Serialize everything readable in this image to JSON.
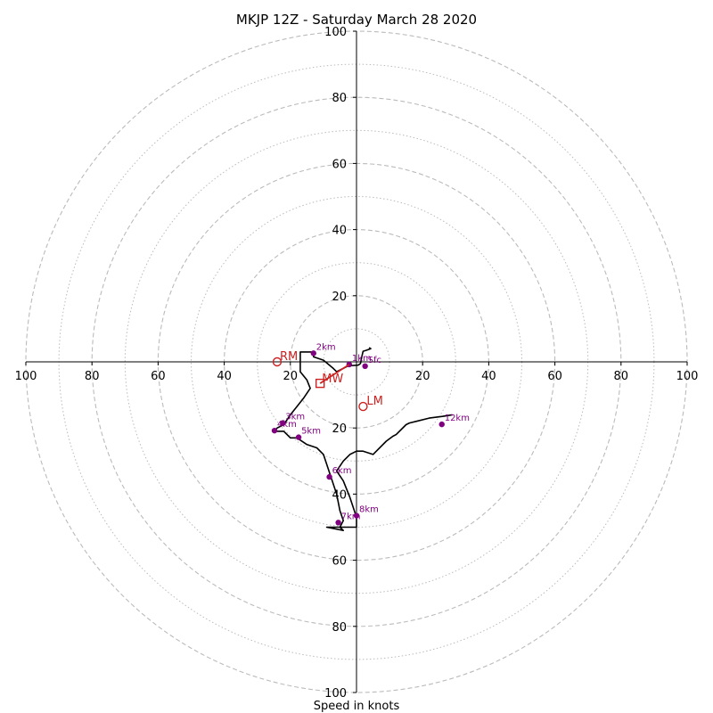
{
  "chart_data": {
    "type": "hodograph",
    "title": "MKJP 12Z - Saturday March 28 2020",
    "xlabel": "Speed in knots",
    "xlim": [
      -100,
      100
    ],
    "ylim": [
      -100,
      100
    ],
    "x_tick_labels": [
      "100",
      "80",
      "60",
      "40",
      "20",
      "20",
      "40",
      "60",
      "80",
      "100"
    ],
    "x_tick_values": [
      -100,
      -80,
      -60,
      -40,
      -20,
      20,
      40,
      60,
      80,
      100
    ],
    "y_tick_labels": [
      "100",
      "80",
      "60",
      "40",
      "20",
      "20",
      "40",
      "60",
      "80",
      "100"
    ],
    "y_tick_values": [
      100,
      80,
      60,
      40,
      20,
      -20,
      -40,
      -60,
      -80,
      -100
    ],
    "range_rings_dashed": [
      20,
      40,
      60,
      80,
      100
    ],
    "range_rings_dotted": [
      10,
      30,
      50,
      70,
      90
    ],
    "trace": [
      [
        3.8,
        4.3
      ],
      [
        4.3,
        4.0
      ],
      [
        3.0,
        3.5
      ],
      [
        2.0,
        3.2
      ],
      [
        1.6,
        1.5
      ],
      [
        1.2,
        -0.5
      ],
      [
        0.5,
        -1.0
      ],
      [
        -2.5,
        -1.2
      ],
      [
        -6,
        -3
      ],
      [
        -7,
        -2
      ],
      [
        -10,
        0.5
      ],
      [
        -13,
        1.5
      ],
      [
        -13,
        3.0
      ],
      [
        -17,
        3.0
      ],
      [
        -17,
        1.0
      ],
      [
        -17,
        -3.0
      ],
      [
        -15,
        -5.5
      ],
      [
        -14,
        -8.0
      ],
      [
        -16,
        -11
      ],
      [
        -18,
        -13.5
      ],
      [
        -20,
        -16
      ],
      [
        -22,
        -19
      ],
      [
        -24,
        -20
      ],
      [
        -25,
        -21
      ],
      [
        -22,
        -21
      ],
      [
        -20,
        -23
      ],
      [
        -18,
        -23
      ],
      [
        -15,
        -25
      ],
      [
        -12,
        -26
      ],
      [
        -10,
        -28
      ],
      [
        -8,
        -34
      ],
      [
        -6,
        -40
      ],
      [
        -5,
        -45
      ],
      [
        -4,
        -48
      ],
      [
        -5,
        -50
      ],
      [
        -4,
        -51
      ],
      [
        -9,
        -50
      ],
      [
        -7,
        -50
      ],
      [
        0,
        -50
      ],
      [
        0,
        -47
      ],
      [
        -2,
        -41
      ],
      [
        -4,
        -36
      ],
      [
        -6,
        -33
      ],
      [
        -4,
        -30
      ],
      [
        -2,
        -28
      ],
      [
        0,
        -27
      ],
      [
        2,
        -27
      ],
      [
        5,
        -28
      ],
      [
        9,
        -24
      ],
      [
        11,
        -22.5
      ],
      [
        12,
        -22
      ],
      [
        15,
        -19
      ],
      [
        16,
        -18.5
      ],
      [
        18,
        -18
      ],
      [
        22,
        -17
      ],
      [
        26,
        -16.5
      ],
      [
        29,
        -16
      ]
    ],
    "height_points": [
      {
        "label": "Sfc",
        "x": 2.6,
        "y": -1.3
      },
      {
        "label": "1km",
        "x": -2.2,
        "y": -0.8
      },
      {
        "label": "2km",
        "x": -13,
        "y": 2.6
      },
      {
        "label": "3km",
        "x": -22.3,
        "y": -18.5
      },
      {
        "label": "4km",
        "x": -24.8,
        "y": -20.8
      },
      {
        "label": "5km",
        "x": -17.5,
        "y": -22.8
      },
      {
        "label": "6km",
        "x": -8.2,
        "y": -34.8
      },
      {
        "label": "7km",
        "x": -5.5,
        "y": -48.6
      },
      {
        "label": "8km",
        "x": 0,
        "y": -46.5
      },
      {
        "label": "12km",
        "x": 25.8,
        "y": -18.9
      }
    ],
    "storm_motion": {
      "RM": {
        "label": "RM",
        "x": -24,
        "y": 0
      },
      "LM": {
        "label": "LM",
        "x": 2,
        "y": -13.5
      },
      "MW": {
        "label": "MW",
        "x": -11,
        "y": -6.5
      }
    },
    "shear_arrow": {
      "from": [
        -11,
        -6.5
      ],
      "to": [
        -2.2,
        -0.8
      ]
    },
    "colors": {
      "trace": "#000000",
      "height_points": "#800080",
      "storm_motion": "#cc2222",
      "rings": "#bbbbbb",
      "axes": "#000000"
    }
  }
}
